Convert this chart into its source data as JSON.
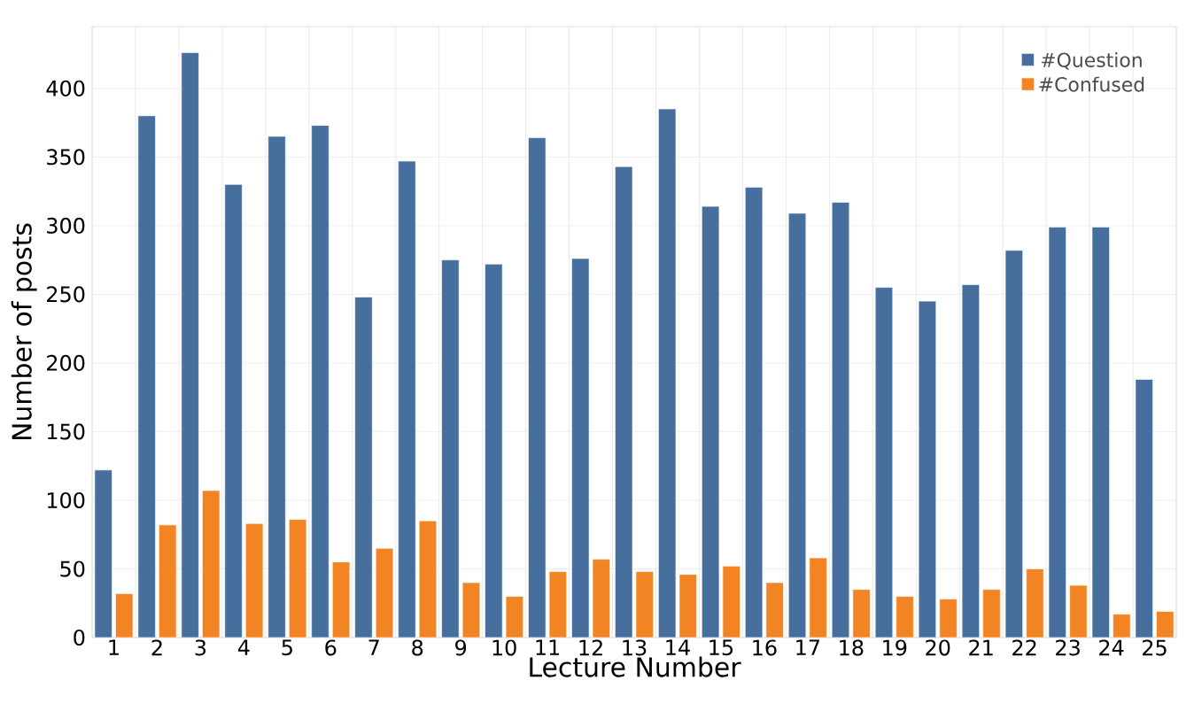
{
  "chart_data": {
    "type": "bar",
    "xlabel": "Lecture Number",
    "ylabel": "Number of posts",
    "categories": [
      "1",
      "2",
      "3",
      "4",
      "5",
      "6",
      "7",
      "8",
      "9",
      "10",
      "11",
      "12",
      "13",
      "14",
      "15",
      "16",
      "17",
      "18",
      "19",
      "20",
      "21",
      "22",
      "23",
      "24",
      "25"
    ],
    "series": [
      {
        "name": "#Question",
        "color": "#466f9d",
        "values": [
          122,
          380,
          426,
          330,
          365,
          373,
          248,
          347,
          275,
          272,
          364,
          276,
          343,
          385,
          314,
          328,
          309,
          317,
          255,
          245,
          257,
          282,
          299,
          299,
          188
        ]
      },
      {
        "name": "#Confused",
        "color": "#f28424",
        "values": [
          32,
          82,
          107,
          83,
          86,
          55,
          65,
          85,
          40,
          30,
          48,
          57,
          48,
          46,
          52,
          40,
          58,
          35,
          30,
          28,
          35,
          50,
          38,
          17,
          19
        ]
      }
    ],
    "ylim": [
      0,
      445
    ],
    "yticks": [
      0,
      50,
      100,
      150,
      200,
      250,
      300,
      350,
      400
    ],
    "grid": true,
    "legend": "top right"
  }
}
